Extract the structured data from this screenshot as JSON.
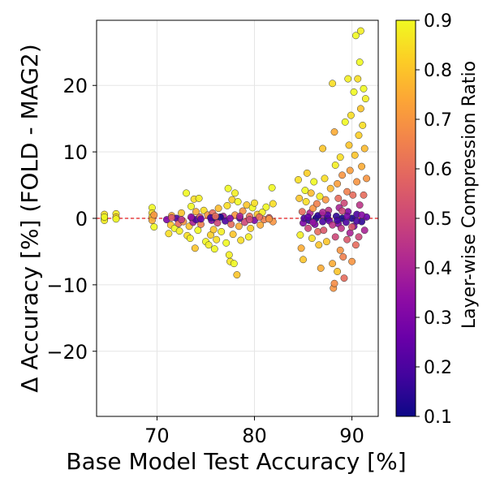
{
  "chart_data": {
    "type": "scatter",
    "title": "",
    "xlabel": "Base Model Test Accuracy [%]",
    "ylabel": "Δ Accuracy [%] (FOLD - MAG2)",
    "xlim": [
      63.8,
      92.7
    ],
    "ylim": [
      -29.8,
      29.8
    ],
    "x_ticks": [
      70,
      80,
      90
    ],
    "y_ticks": [
      -20,
      -10,
      0,
      10,
      20
    ],
    "x_tick_labels": [
      "70",
      "80",
      "90"
    ],
    "y_tick_labels": [
      "−20",
      "−10",
      "0",
      "10",
      "20"
    ],
    "reference_line": {
      "y": 0,
      "color": "#e41a1c",
      "style": "dashed"
    },
    "grid": true,
    "colorbar": {
      "label": "Layer-wise Compression Ratio",
      "colormap": "plasma",
      "min": 0.1,
      "max": 0.9,
      "ticks": [
        0.1,
        0.2,
        0.3,
        0.4,
        0.5,
        0.6,
        0.7,
        0.8,
        0.9
      ],
      "tick_labels": [
        "0.1",
        "0.2",
        "0.3",
        "0.4",
        "0.5",
        "0.6",
        "0.7",
        "0.8",
        "0.9"
      ]
    },
    "point_columns": [
      "x",
      "y",
      "compression_ratio"
    ],
    "points": [
      [
        64.6,
        0.6,
        0.85
      ],
      [
        64.6,
        0.0,
        0.8
      ],
      [
        64.6,
        -0.3,
        0.88
      ],
      [
        64.6,
        0.2,
        0.9
      ],
      [
        65.8,
        0.7,
        0.87
      ],
      [
        65.8,
        0.2,
        0.82
      ],
      [
        65.8,
        -0.1,
        0.9
      ],
      [
        69.5,
        1.6,
        0.9
      ],
      [
        69.5,
        0.8,
        0.85
      ],
      [
        69.5,
        0.2,
        0.8
      ],
      [
        69.5,
        -0.3,
        0.75
      ],
      [
        69.7,
        -1.3,
        0.9
      ],
      [
        69.7,
        0.5,
        0.7
      ],
      [
        71.0,
        -0.2,
        0.3
      ],
      [
        71.2,
        -2.3,
        0.85
      ],
      [
        71.4,
        -1.0,
        0.8
      ],
      [
        71.5,
        0.4,
        0.75
      ],
      [
        71.8,
        -1.5,
        0.9
      ],
      [
        72.0,
        0.0,
        0.2
      ],
      [
        72.2,
        -0.8,
        0.6
      ],
      [
        72.3,
        -1.9,
        0.88
      ],
      [
        72.5,
        0.8,
        0.8
      ],
      [
        72.7,
        -0.5,
        0.7
      ],
      [
        73.0,
        3.8,
        0.9
      ],
      [
        73.1,
        -2.6,
        0.85
      ],
      [
        73.3,
        -1.2,
        0.8
      ],
      [
        73.4,
        -3.0,
        0.88
      ],
      [
        73.5,
        1.8,
        0.9
      ],
      [
        73.6,
        0.0,
        0.3
      ],
      [
        73.7,
        -0.6,
        0.4
      ],
      [
        73.8,
        2.9,
        0.85
      ],
      [
        73.9,
        -4.5,
        0.8
      ],
      [
        74.0,
        1.0,
        0.75
      ],
      [
        74.0,
        -0.2,
        0.2
      ],
      [
        74.2,
        -1.8,
        0.9
      ],
      [
        74.3,
        3.0,
        0.88
      ],
      [
        74.4,
        0.2,
        0.55
      ],
      [
        74.5,
        -0.9,
        0.65
      ],
      [
        74.8,
        1.2,
        0.85
      ],
      [
        75.0,
        -3.5,
        0.9
      ],
      [
        75.2,
        0.5,
        0.7
      ],
      [
        75.3,
        -4.0,
        0.88
      ],
      [
        75.5,
        -2.5,
        0.82
      ],
      [
        75.6,
        -0.3,
        0.3
      ],
      [
        75.7,
        0.8,
        0.6
      ],
      [
        75.8,
        -1.7,
        0.8
      ],
      [
        75.9,
        -4.6,
        0.9
      ],
      [
        76.0,
        0.0,
        0.15
      ],
      [
        76.1,
        -3.2,
        0.85
      ],
      [
        76.2,
        -0.7,
        0.5
      ],
      [
        76.3,
        1.5,
        0.78
      ],
      [
        76.6,
        -2.0,
        0.88
      ],
      [
        76.8,
        0.3,
        0.4
      ],
      [
        77.0,
        -0.4,
        0.2
      ],
      [
        77.1,
        -3.7,
        0.9
      ],
      [
        77.2,
        1.9,
        0.85
      ],
      [
        77.3,
        4.5,
        0.9
      ],
      [
        77.4,
        -5.5,
        0.88
      ],
      [
        77.5,
        -6.5,
        0.86
      ],
      [
        77.6,
        -0.9,
        0.6
      ],
      [
        77.7,
        2.8,
        0.82
      ],
      [
        77.8,
        -2.4,
        0.8
      ],
      [
        77.9,
        -6.8,
        0.9
      ],
      [
        78.0,
        0.5,
        0.7
      ],
      [
        78.0,
        3.8,
        0.88
      ],
      [
        78.2,
        -8.5,
        0.8
      ],
      [
        78.3,
        2.5,
        0.9
      ],
      [
        78.4,
        -1.2,
        0.75
      ],
      [
        78.5,
        0.0,
        0.2
      ],
      [
        78.6,
        -3.3,
        0.85
      ],
      [
        78.8,
        1.1,
        0.7
      ],
      [
        79.0,
        -0.6,
        0.5
      ],
      [
        79.2,
        2.0,
        0.8
      ],
      [
        79.4,
        -2.8,
        0.88
      ],
      [
        79.5,
        0.3,
        0.6
      ],
      [
        79.6,
        -1.5,
        0.82
      ],
      [
        79.8,
        1.6,
        0.9
      ],
      [
        80.0,
        -0.3,
        0.3
      ],
      [
        80.0,
        2.3,
        0.85
      ],
      [
        80.3,
        0.6,
        0.8
      ],
      [
        80.6,
        -1.0,
        0.75
      ],
      [
        80.8,
        0.9,
        0.88
      ],
      [
        81.0,
        -0.2,
        0.65
      ],
      [
        81.2,
        1.7,
        0.9
      ],
      [
        81.5,
        0.1,
        0.55
      ],
      [
        81.8,
        4.6,
        0.9
      ],
      [
        81.9,
        2.2,
        0.85
      ],
      [
        81.9,
        -0.5,
        0.7
      ],
      [
        84.5,
        5.8,
        0.85
      ],
      [
        84.6,
        3.0,
        0.8
      ],
      [
        84.7,
        -2.5,
        0.88
      ],
      [
        84.8,
        -4.5,
        0.75
      ],
      [
        84.9,
        1.0,
        0.6
      ],
      [
        85.0,
        -0.7,
        0.3
      ],
      [
        85.0,
        -6.2,
        0.8
      ],
      [
        85.1,
        0.0,
        0.2
      ],
      [
        85.2,
        4.2,
        0.9
      ],
      [
        85.3,
        2.5,
        0.85
      ],
      [
        85.4,
        6.8,
        0.82
      ],
      [
        85.5,
        -1.5,
        0.5
      ],
      [
        85.6,
        -0.3,
        0.15
      ],
      [
        85.7,
        0.8,
        0.4
      ],
      [
        85.8,
        3.8,
        0.78
      ],
      [
        85.9,
        -3.0,
        0.85
      ],
      [
        86.0,
        1.5,
        0.7
      ],
      [
        86.1,
        5.5,
        0.9
      ],
      [
        86.2,
        -0.9,
        0.3
      ],
      [
        86.3,
        0.0,
        0.1
      ],
      [
        86.4,
        2.2,
        0.65
      ],
      [
        86.5,
        -2.0,
        0.6
      ],
      [
        86.6,
        -4.0,
        0.8
      ],
      [
        86.7,
        3.3,
        0.88
      ],
      [
        86.8,
        -7.5,
        0.75
      ],
      [
        86.9,
        0.5,
        0.35
      ],
      [
        87.0,
        -0.5,
        0.2
      ],
      [
        87.0,
        10.5,
        0.8
      ],
      [
        87.1,
        -1.8,
        0.55
      ],
      [
        87.2,
        6.0,
        0.85
      ],
      [
        87.3,
        2.8,
        0.7
      ],
      [
        87.4,
        -3.5,
        0.8
      ],
      [
        87.5,
        0.0,
        0.12
      ],
      [
        87.6,
        1.2,
        0.45
      ],
      [
        87.7,
        -0.4,
        0.25
      ],
      [
        87.8,
        4.5,
        0.78
      ],
      [
        88.0,
        -6.8,
        0.75
      ],
      [
        88.0,
        20.3,
        0.85
      ],
      [
        88.1,
        -10.5,
        0.7
      ],
      [
        88.2,
        13.0,
        0.75
      ],
      [
        88.2,
        -9.8,
        0.68
      ],
      [
        88.3,
        8.0,
        0.88
      ],
      [
        88.3,
        -2.8,
        0.5
      ],
      [
        88.4,
        0.3,
        0.15
      ],
      [
        88.5,
        5.2,
        0.72
      ],
      [
        88.5,
        -8.0,
        0.8
      ],
      [
        88.6,
        -0.8,
        0.3
      ],
      [
        88.6,
        3.0,
        0.6
      ],
      [
        88.7,
        1.6,
        0.4
      ],
      [
        88.8,
        -4.8,
        0.7
      ],
      [
        88.8,
        9.2,
        0.85
      ],
      [
        88.9,
        -1.5,
        0.45
      ],
      [
        89.0,
        0.0,
        0.1
      ],
      [
        89.0,
        6.5,
        0.7
      ],
      [
        89.1,
        -5.8,
        0.65
      ],
      [
        89.2,
        -9.0,
        0.6
      ],
      [
        89.2,
        2.3,
        0.5
      ],
      [
        89.3,
        14.5,
        0.9
      ],
      [
        89.4,
        -0.6,
        0.2
      ],
      [
        89.5,
        4.0,
        0.65
      ],
      [
        89.5,
        -3.2,
        0.55
      ],
      [
        89.6,
        21.0,
        0.88
      ],
      [
        89.6,
        1.0,
        0.3
      ],
      [
        89.7,
        11.0,
        0.8
      ],
      [
        89.8,
        -2.2,
        0.4
      ],
      [
        89.8,
        7.2,
        0.72
      ],
      [
        89.9,
        15.5,
        0.85
      ],
      [
        90.0,
        0.0,
        0.12
      ],
      [
        90.0,
        -6.5,
        0.7
      ],
      [
        90.1,
        3.5,
        0.6
      ],
      [
        90.2,
        19.0,
        0.9
      ],
      [
        90.2,
        -1.2,
        0.3
      ],
      [
        90.3,
        9.5,
        0.8
      ],
      [
        90.4,
        -4.0,
        0.6
      ],
      [
        90.4,
        27.5,
        0.9
      ],
      [
        90.5,
        5.5,
        0.7
      ],
      [
        90.5,
        0.6,
        0.2
      ],
      [
        90.6,
        21.0,
        0.85
      ],
      [
        90.7,
        12.5,
        0.82
      ],
      [
        90.7,
        -2.8,
        0.5
      ],
      [
        90.8,
        23.5,
        0.9
      ],
      [
        90.8,
        2.0,
        0.45
      ],
      [
        90.9,
        28.2,
        0.88
      ],
      [
        90.9,
        16.5,
        0.8
      ],
      [
        91.0,
        -0.5,
        0.15
      ],
      [
        91.0,
        7.8,
        0.75
      ],
      [
        91.1,
        14.0,
        0.85
      ],
      [
        91.2,
        3.5,
        0.6
      ],
      [
        91.2,
        19.5,
        0.9
      ],
      [
        91.3,
        -1.8,
        0.4
      ],
      [
        91.3,
        10.5,
        0.78
      ],
      [
        91.4,
        18.0,
        0.88
      ],
      [
        91.5,
        6.0,
        0.7
      ],
      [
        91.5,
        0.2,
        0.25
      ],
      [
        86.5,
        0.4,
        0.15
      ],
      [
        87.5,
        0.5,
        0.22
      ],
      [
        88.5,
        -0.3,
        0.18
      ],
      [
        89.5,
        0.3,
        0.28
      ],
      [
        90.5,
        -0.4,
        0.2
      ],
      [
        91.0,
        0.5,
        0.32
      ],
      [
        85.5,
        0.2,
        0.25
      ],
      [
        86.0,
        -0.6,
        0.35
      ],
      [
        87.0,
        0.9,
        0.4
      ],
      [
        88.0,
        -1.0,
        0.45
      ],
      [
        89.0,
        1.1,
        0.5
      ],
      [
        90.0,
        -1.3,
        0.55
      ],
      [
        76.5,
        0.2,
        0.12
      ],
      [
        75.5,
        0.1,
        0.18
      ],
      [
        74.5,
        -0.1,
        0.25
      ],
      [
        73.5,
        0.2,
        0.35
      ],
      [
        72.5,
        -0.2,
        0.45
      ],
      [
        71.5,
        0.1,
        0.55
      ],
      [
        77.5,
        0.0,
        0.3
      ],
      [
        78.5,
        0.3,
        0.4
      ],
      [
        79.5,
        -0.2,
        0.5
      ],
      [
        80.5,
        0.2,
        0.6
      ],
      [
        81.5,
        -0.1,
        0.7
      ],
      [
        76.0,
        0.3,
        0.6
      ]
    ]
  }
}
